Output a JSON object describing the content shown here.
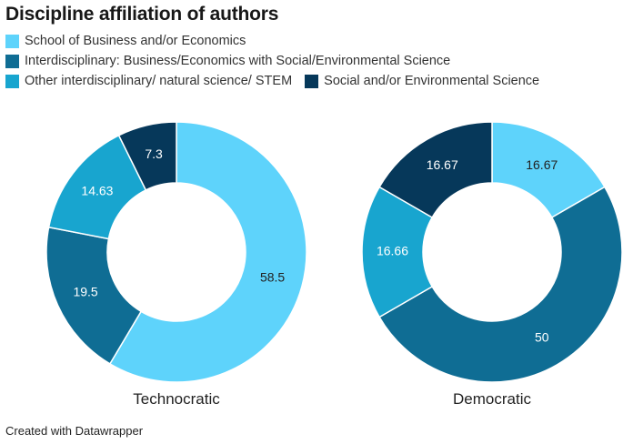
{
  "chart_data": {
    "type": "pie",
    "title": "Discipline affiliation of authors",
    "variant": "donut",
    "legend": [
      {
        "key": "business",
        "label": "School of Business and/or Economics",
        "color": "#5ed3fb"
      },
      {
        "key": "interdisc_social",
        "label": "Interdisciplinary: Business/Economics with Social/Environmental Science",
        "color": "#0f6d94"
      },
      {
        "key": "stem",
        "label": "Other interdisciplinary/ natural science/ STEM",
        "color": "#18a5cf"
      },
      {
        "key": "social_env",
        "label": "Social and/or Environmental Science",
        "color": "#06385a"
      }
    ],
    "charts": [
      {
        "name": "Technocratic",
        "slices": [
          {
            "key": "business",
            "value": 58.5,
            "label": "58.5"
          },
          {
            "key": "interdisc_social",
            "value": 19.5,
            "label": "19.5"
          },
          {
            "key": "stem",
            "value": 14.63,
            "label": "14.63"
          },
          {
            "key": "social_env",
            "value": 7.3,
            "label": "7.3"
          }
        ]
      },
      {
        "name": "Democratic",
        "slices": [
          {
            "key": "business",
            "value": 16.67,
            "label": "16.67"
          },
          {
            "key": "interdisc_social",
            "value": 50,
            "label": "50"
          },
          {
            "key": "stem",
            "value": 16.66,
            "label": "16.66"
          },
          {
            "key": "social_env",
            "value": 16.67,
            "label": "16.67"
          }
        ]
      }
    ],
    "footer": "Created with Datawrapper"
  }
}
